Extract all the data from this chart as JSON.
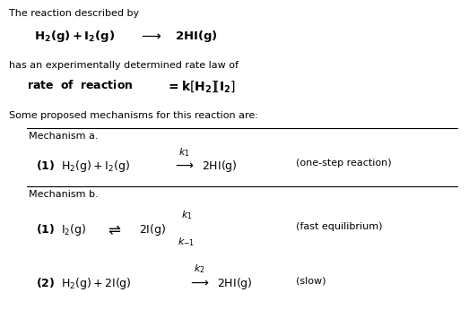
{
  "bg_color": "#ffffff",
  "fig_width": 5.23,
  "fig_height": 3.65,
  "dpi": 100,
  "content": {
    "line1_top": "The reaction described by",
    "rxn1": "H\\u2082(g) + I\\u2082(g)  \\u2192  2HI(g)",
    "line2": "has an experimentally determined rate law of",
    "rate_law": "rate  of  reaction  = k[H\\u2082][I\\u2082]",
    "line3": "Some proposed mechanisms for this reaction are:",
    "mech_a": "Mechanism a.",
    "mech_b": "Mechanism b.",
    "one_step": "(one-step reaction)",
    "fast_eq": "(fast equilibrium)",
    "slow": "(slow)"
  }
}
